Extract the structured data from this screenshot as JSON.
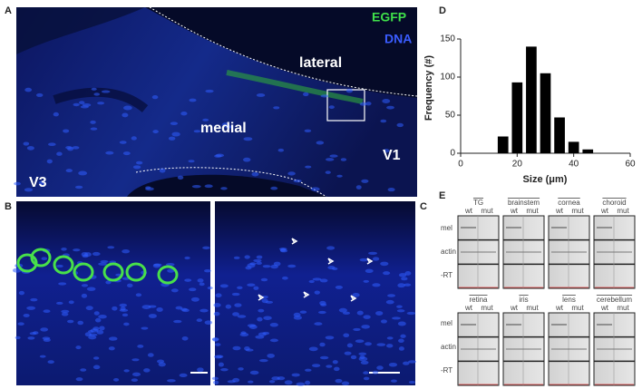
{
  "panels": {
    "a": {
      "label": "A",
      "legend": [
        "EGFP",
        "DNA"
      ],
      "regions": [
        "lateral",
        "medial",
        "V1",
        "V3"
      ]
    },
    "b": {
      "label": "B"
    },
    "c": {
      "label": "C"
    },
    "d": {
      "label": "D"
    },
    "e": {
      "label": "E",
      "tissues": [
        "TG",
        "brainstem",
        "cornea",
        "choroid",
        "retina",
        "iris",
        "lens",
        "cerebellum"
      ],
      "genotypes": [
        "wt",
        "mut"
      ],
      "rows": [
        "mel",
        "actin",
        "-RT"
      ]
    }
  },
  "chart_data": {
    "type": "histogram",
    "xlabel": "Size (μm)",
    "ylabel": "Frequency (#)",
    "bins": [
      12.5,
      17.5,
      22.5,
      27.5,
      32.5,
      37.5,
      42.5,
      47.5
    ],
    "values": [
      22,
      93,
      140,
      105,
      47,
      15,
      5
    ],
    "color": "#000000",
    "xlim": [
      0,
      60
    ],
    "xticks": [
      0,
      20,
      40,
      60
    ],
    "ylim": [
      0,
      150
    ],
    "yticks": [
      0,
      50,
      100,
      150
    ]
  }
}
